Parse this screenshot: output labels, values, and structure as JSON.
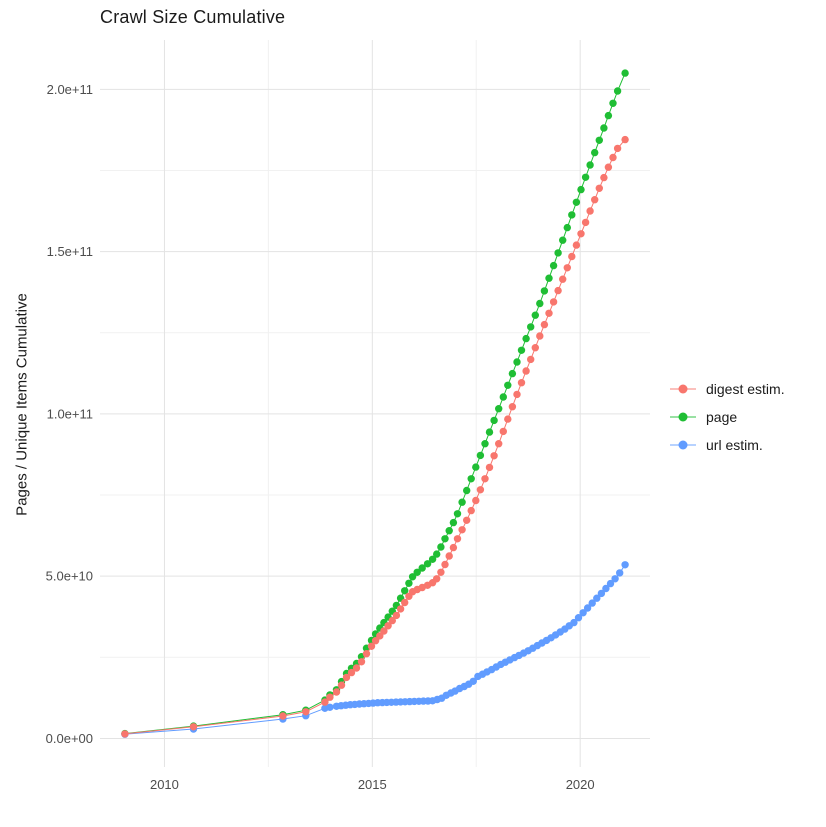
{
  "chart_data": {
    "type": "line",
    "title": "Crawl Size Cumulative",
    "xlabel": "",
    "ylabel": "Pages / Unique Items Cumulative",
    "value_unit_note": "series point values stored in billions (1e9); y axis labels shown in scientific notation",
    "x_ticks": {
      "values": [
        2010,
        2015,
        2020
      ],
      "labels": [
        "2010",
        "2015",
        "2020"
      ]
    },
    "x_minor_ticks": [
      2012.5,
      2017.5
    ],
    "y_ticks": {
      "values_billions": [
        0,
        50,
        100,
        150,
        200
      ],
      "labels": [
        "0.0e+00",
        "5.0e+10",
        "1.0e+11",
        "1.5e+11",
        "2.0e+11"
      ]
    },
    "y_minor_ticks_billions": [
      25,
      75,
      125,
      175
    ],
    "x_range": [
      2008.45,
      2021.68
    ],
    "y_range_billions": [
      -8.8,
      215.2
    ],
    "grid": "major and minor gridlines, light gray on white, no axis lines",
    "legend_position": "right-center",
    "series": [
      {
        "name": "digest estim.",
        "color": "#F8766D",
        "points": [
          [
            2009.05,
            1.4
          ],
          [
            2010.7,
            3.6
          ],
          [
            2012.85,
            6.9
          ],
          [
            2013.4,
            8.2
          ],
          [
            2013.86,
            11.2
          ],
          [
            2013.98,
            12.7
          ],
          [
            2014.14,
            14.3
          ],
          [
            2014.26,
            16.4
          ],
          [
            2014.38,
            18.8
          ],
          [
            2014.5,
            20.3
          ],
          [
            2014.62,
            21.7
          ],
          [
            2014.74,
            23.6
          ],
          [
            2014.86,
            26.1
          ],
          [
            2014.98,
            28.4
          ],
          [
            2015.08,
            30.1
          ],
          [
            2015.18,
            31.6
          ],
          [
            2015.28,
            33.1
          ],
          [
            2015.38,
            34.7
          ],
          [
            2015.48,
            36.3
          ],
          [
            2015.58,
            37.9
          ],
          [
            2015.68,
            39.9
          ],
          [
            2015.78,
            41.9
          ],
          [
            2015.88,
            43.8
          ],
          [
            2015.97,
            45.2
          ],
          [
            2016.08,
            45.9
          ],
          [
            2016.2,
            46.5
          ],
          [
            2016.33,
            47.2
          ],
          [
            2016.45,
            48.0
          ],
          [
            2016.55,
            49.2
          ],
          [
            2016.65,
            51.2
          ],
          [
            2016.75,
            53.6
          ],
          [
            2016.85,
            56.2
          ],
          [
            2016.95,
            58.8
          ],
          [
            2017.05,
            61.5
          ],
          [
            2017.16,
            64.3
          ],
          [
            2017.27,
            67.2
          ],
          [
            2017.38,
            70.2
          ],
          [
            2017.49,
            73.3
          ],
          [
            2017.6,
            76.6
          ],
          [
            2017.71,
            80.0
          ],
          [
            2017.82,
            83.5
          ],
          [
            2017.93,
            87.1
          ],
          [
            2018.04,
            90.8
          ],
          [
            2018.15,
            94.6
          ],
          [
            2018.26,
            98.4
          ],
          [
            2018.37,
            102.2
          ],
          [
            2018.48,
            106.0
          ],
          [
            2018.59,
            109.6
          ],
          [
            2018.7,
            113.2
          ],
          [
            2018.81,
            116.8
          ],
          [
            2018.92,
            120.4
          ],
          [
            2019.03,
            124.0
          ],
          [
            2019.14,
            127.5
          ],
          [
            2019.25,
            131.0
          ],
          [
            2019.36,
            134.5
          ],
          [
            2019.47,
            138.0
          ],
          [
            2019.58,
            141.5
          ],
          [
            2019.69,
            145.0
          ],
          [
            2019.8,
            148.5
          ],
          [
            2019.91,
            152.0
          ],
          [
            2020.02,
            155.5
          ],
          [
            2020.13,
            159.0
          ],
          [
            2020.24,
            162.5
          ],
          [
            2020.35,
            166.0
          ],
          [
            2020.46,
            169.5
          ],
          [
            2020.57,
            172.8
          ],
          [
            2020.68,
            176.0
          ],
          [
            2020.79,
            179.0
          ],
          [
            2020.9,
            181.8
          ],
          [
            2021.08,
            184.5
          ]
        ]
      },
      {
        "name": "page",
        "color": "#1FBE34",
        "points": [
          [
            2009.05,
            1.5
          ],
          [
            2010.7,
            3.8
          ],
          [
            2012.85,
            7.3
          ],
          [
            2013.4,
            8.7
          ],
          [
            2013.86,
            11.8
          ],
          [
            2013.98,
            13.4
          ],
          [
            2014.14,
            15.0
          ],
          [
            2014.26,
            17.5
          ],
          [
            2014.38,
            20.0
          ],
          [
            2014.5,
            21.6
          ],
          [
            2014.62,
            23.1
          ],
          [
            2014.74,
            25.2
          ],
          [
            2014.86,
            27.8
          ],
          [
            2014.98,
            30.2
          ],
          [
            2015.08,
            32.2
          ],
          [
            2015.18,
            34.0
          ],
          [
            2015.28,
            35.7
          ],
          [
            2015.38,
            37.4
          ],
          [
            2015.48,
            39.2
          ],
          [
            2015.58,
            41.0
          ],
          [
            2015.68,
            43.2
          ],
          [
            2015.78,
            45.5
          ],
          [
            2015.88,
            47.8
          ],
          [
            2015.97,
            49.8
          ],
          [
            2016.08,
            51.2
          ],
          [
            2016.2,
            52.5
          ],
          [
            2016.33,
            53.8
          ],
          [
            2016.45,
            55.2
          ],
          [
            2016.55,
            56.8
          ],
          [
            2016.65,
            59.0
          ],
          [
            2016.75,
            61.5
          ],
          [
            2016.85,
            64.0
          ],
          [
            2016.95,
            66.5
          ],
          [
            2017.05,
            69.2
          ],
          [
            2017.16,
            72.8
          ],
          [
            2017.27,
            76.4
          ],
          [
            2017.38,
            80.0
          ],
          [
            2017.49,
            83.6
          ],
          [
            2017.6,
            87.2
          ],
          [
            2017.71,
            90.8
          ],
          [
            2017.82,
            94.4
          ],
          [
            2017.93,
            98.0
          ],
          [
            2018.04,
            101.6
          ],
          [
            2018.15,
            105.2
          ],
          [
            2018.26,
            108.8
          ],
          [
            2018.37,
            112.4
          ],
          [
            2018.48,
            116.0
          ],
          [
            2018.59,
            119.6
          ],
          [
            2018.7,
            123.2
          ],
          [
            2018.81,
            126.8
          ],
          [
            2018.92,
            130.4
          ],
          [
            2019.03,
            134.0
          ],
          [
            2019.14,
            137.9
          ],
          [
            2019.25,
            141.8
          ],
          [
            2019.36,
            145.7
          ],
          [
            2019.47,
            149.6
          ],
          [
            2019.58,
            153.5
          ],
          [
            2019.69,
            157.4
          ],
          [
            2019.8,
            161.3
          ],
          [
            2019.91,
            165.2
          ],
          [
            2020.02,
            169.1
          ],
          [
            2020.13,
            172.9
          ],
          [
            2020.24,
            176.7
          ],
          [
            2020.35,
            180.5
          ],
          [
            2020.46,
            184.3
          ],
          [
            2020.57,
            188.1
          ],
          [
            2020.68,
            191.9
          ],
          [
            2020.79,
            195.7
          ],
          [
            2020.9,
            199.5
          ],
          [
            2021.08,
            205.0
          ]
        ]
      },
      {
        "name": "url estim.",
        "color": "#619CFF",
        "points": [
          [
            2009.05,
            1.3
          ],
          [
            2010.7,
            2.9
          ],
          [
            2012.85,
            6.0
          ],
          [
            2013.4,
            7.0
          ],
          [
            2013.86,
            9.3
          ],
          [
            2013.98,
            9.6
          ],
          [
            2014.14,
            9.9
          ],
          [
            2014.25,
            10.1
          ],
          [
            2014.36,
            10.25
          ],
          [
            2014.47,
            10.4
          ],
          [
            2014.58,
            10.5
          ],
          [
            2014.69,
            10.6
          ],
          [
            2014.8,
            10.7
          ],
          [
            2014.91,
            10.8
          ],
          [
            2015.02,
            10.9
          ],
          [
            2015.13,
            11.0
          ],
          [
            2015.24,
            11.05
          ],
          [
            2015.35,
            11.1
          ],
          [
            2015.46,
            11.15
          ],
          [
            2015.57,
            11.2
          ],
          [
            2015.68,
            11.25
          ],
          [
            2015.79,
            11.3
          ],
          [
            2015.9,
            11.35
          ],
          [
            2016.01,
            11.4
          ],
          [
            2016.12,
            11.45
          ],
          [
            2016.23,
            11.5
          ],
          [
            2016.34,
            11.55
          ],
          [
            2016.45,
            11.6
          ],
          [
            2016.56,
            12.0
          ],
          [
            2016.67,
            12.4
          ],
          [
            2016.78,
            13.3
          ],
          [
            2016.89,
            14.0
          ],
          [
            2016.99,
            14.6
          ],
          [
            2017.1,
            15.4
          ],
          [
            2017.21,
            16.0
          ],
          [
            2017.32,
            16.7
          ],
          [
            2017.43,
            17.6
          ],
          [
            2017.54,
            19.1
          ],
          [
            2017.65,
            19.8
          ],
          [
            2017.76,
            20.5
          ],
          [
            2017.87,
            21.2
          ],
          [
            2017.98,
            22.0
          ],
          [
            2018.09,
            22.8
          ],
          [
            2018.2,
            23.5
          ],
          [
            2018.31,
            24.2
          ],
          [
            2018.42,
            24.9
          ],
          [
            2018.53,
            25.6
          ],
          [
            2018.64,
            26.3
          ],
          [
            2018.75,
            27.0
          ],
          [
            2018.86,
            27.8
          ],
          [
            2018.97,
            28.6
          ],
          [
            2019.08,
            29.4
          ],
          [
            2019.19,
            30.2
          ],
          [
            2019.3,
            31.0
          ],
          [
            2019.41,
            31.9
          ],
          [
            2019.52,
            32.8
          ],
          [
            2019.63,
            33.7
          ],
          [
            2019.74,
            34.7
          ],
          [
            2019.85,
            35.7
          ],
          [
            2019.96,
            37.2
          ],
          [
            2020.07,
            38.7
          ],
          [
            2020.18,
            40.2
          ],
          [
            2020.29,
            41.7
          ],
          [
            2020.4,
            43.2
          ],
          [
            2020.51,
            44.7
          ],
          [
            2020.62,
            46.2
          ],
          [
            2020.73,
            47.7
          ],
          [
            2020.84,
            49.2
          ],
          [
            2020.95,
            51.0
          ],
          [
            2021.08,
            53.5
          ]
        ]
      }
    ]
  }
}
